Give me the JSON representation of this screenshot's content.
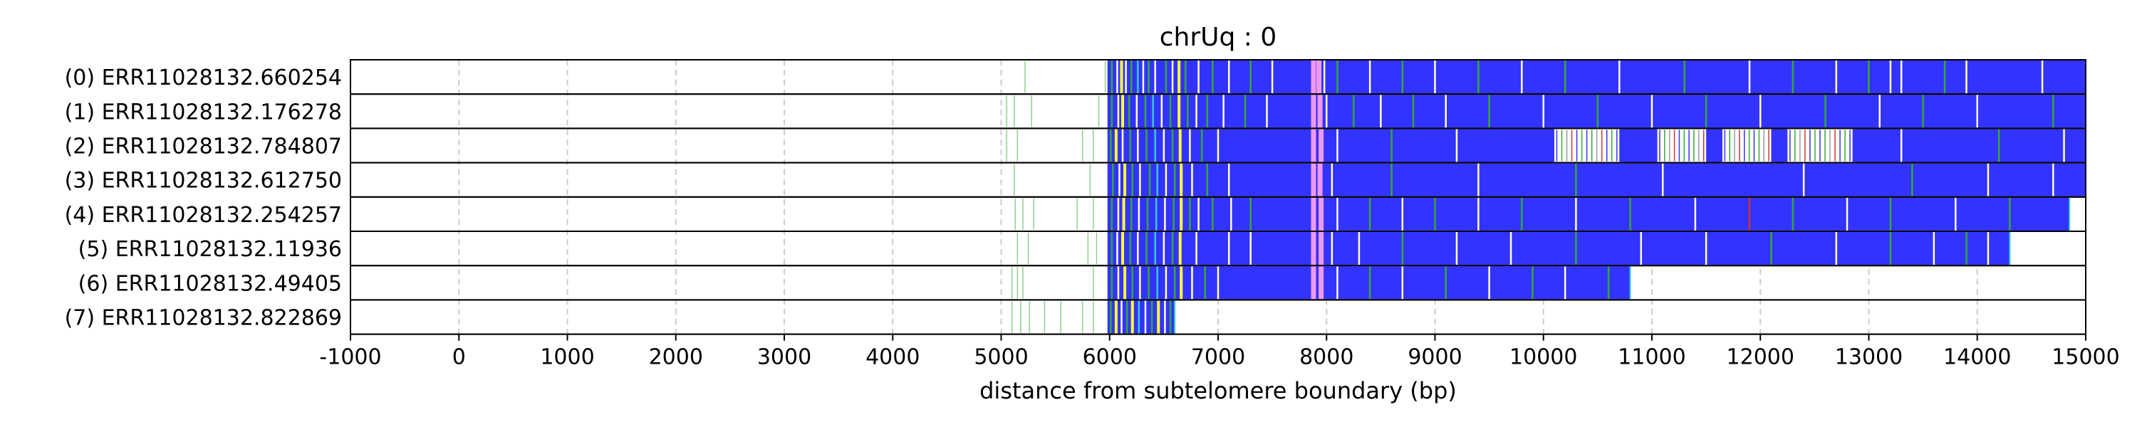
{
  "chart_data": {
    "type": "heatmap",
    "title": "chrUq : 0",
    "xlabel": "distance from subtelomere boundary (bp)",
    "ylabel": "",
    "xlim": [
      -1000,
      15000
    ],
    "xticks": [
      -1000,
      0,
      1000,
      2000,
      3000,
      4000,
      5000,
      6000,
      7000,
      8000,
      9000,
      10000,
      11000,
      12000,
      13000,
      14000,
      15000
    ],
    "xtick_labels": [
      "-1000",
      "0",
      "1000",
      "2000",
      "3000",
      "4000",
      "5000",
      "6000",
      "7000",
      "8000",
      "9000",
      "10000",
      "11000",
      "12000",
      "13000",
      "14000",
      "15000"
    ],
    "grid": "x-dashed",
    "colors": {
      "repeat_fill": "#3333ff",
      "green": "#33aa33",
      "yellow": "#ffff33",
      "pink": "#ee99ee",
      "cyan": "#33cccc",
      "red": "#cc3333",
      "grey": "#999999",
      "white": "#ffffff",
      "frame": "#000000",
      "grid": "#cccccc"
    },
    "reads": [
      {
        "label": "(0) ERR11028132.660254",
        "read_end": 15000,
        "block_start": 5980,
        "block_end": 15000,
        "scattered_marks": [
          5220,
          5960
        ],
        "dense_ticks": [
          [
            6020,
            "green"
          ],
          [
            6070,
            "white"
          ],
          [
            6110,
            "yellow"
          ],
          [
            6150,
            "white"
          ],
          [
            6200,
            "green"
          ],
          [
            6260,
            "cyan"
          ],
          [
            6310,
            "white"
          ],
          [
            6360,
            "green"
          ],
          [
            6420,
            "white"
          ],
          [
            6520,
            "green"
          ],
          [
            6580,
            "white"
          ],
          [
            6640,
            "yellow"
          ],
          [
            6700,
            "green"
          ],
          [
            6820,
            "white"
          ],
          [
            6950,
            "green"
          ],
          [
            7100,
            "white"
          ],
          [
            7300,
            "green"
          ],
          [
            7500,
            "white"
          ],
          [
            7880,
            "pink"
          ],
          [
            7930,
            "pink"
          ],
          [
            7980,
            "white"
          ],
          [
            8100,
            "green"
          ],
          [
            8400,
            "white"
          ],
          [
            8700,
            "green"
          ],
          [
            9000,
            "white"
          ],
          [
            9400,
            "green"
          ],
          [
            9800,
            "white"
          ],
          [
            10200,
            "green"
          ],
          [
            10700,
            "white"
          ],
          [
            11300,
            "green"
          ],
          [
            11900,
            "white"
          ],
          [
            12300,
            "green"
          ],
          [
            12700,
            "white"
          ],
          [
            13000,
            "green"
          ],
          [
            13200,
            "white"
          ],
          [
            13300,
            "white"
          ],
          [
            13700,
            "green"
          ],
          [
            13900,
            "white"
          ],
          [
            14600,
            "white"
          ]
        ]
      },
      {
        "label": "(1) ERR11028132.176278",
        "read_end": 15000,
        "block_start": 5980,
        "block_end": 15000,
        "scattered_marks": [
          5050,
          5120,
          5280,
          5900
        ],
        "dense_ticks": [
          [
            6020,
            "green"
          ],
          [
            6080,
            "white"
          ],
          [
            6120,
            "yellow"
          ],
          [
            6180,
            "green"
          ],
          [
            6250,
            "white"
          ],
          [
            6330,
            "green"
          ],
          [
            6400,
            "cyan"
          ],
          [
            6480,
            "white"
          ],
          [
            6560,
            "green"
          ],
          [
            6640,
            "yellow"
          ],
          [
            6720,
            "green"
          ],
          [
            6800,
            "white"
          ],
          [
            6900,
            "green"
          ],
          [
            7050,
            "white"
          ],
          [
            7250,
            "green"
          ],
          [
            7450,
            "white"
          ],
          [
            7880,
            "pink"
          ],
          [
            7940,
            "pink"
          ],
          [
            8000,
            "white"
          ],
          [
            8250,
            "green"
          ],
          [
            8500,
            "white"
          ],
          [
            8800,
            "green"
          ],
          [
            9100,
            "white"
          ],
          [
            9500,
            "green"
          ],
          [
            10000,
            "white"
          ],
          [
            10500,
            "green"
          ],
          [
            11000,
            "white"
          ],
          [
            11500,
            "green"
          ],
          [
            12000,
            "white"
          ],
          [
            12600,
            "green"
          ],
          [
            13100,
            "white"
          ],
          [
            13500,
            "green"
          ],
          [
            14000,
            "white"
          ],
          [
            14700,
            "green"
          ]
        ]
      },
      {
        "label": "(2) ERR11028132.784807",
        "read_end": 15000,
        "block_start": 5980,
        "block_end": 15000,
        "scattered_marks": [
          5050,
          5150,
          5750,
          5850
        ],
        "dense_ticks": [
          [
            6010,
            "green"
          ],
          [
            6060,
            "yellow"
          ],
          [
            6120,
            "white"
          ],
          [
            6190,
            "green"
          ],
          [
            6260,
            "white"
          ],
          [
            6340,
            "green"
          ],
          [
            6420,
            "cyan"
          ],
          [
            6500,
            "white"
          ],
          [
            6580,
            "green"
          ],
          [
            6650,
            "yellow"
          ],
          [
            6740,
            "white"
          ],
          [
            6850,
            "green"
          ],
          [
            7000,
            "white"
          ],
          [
            7880,
            "pink"
          ],
          [
            7950,
            "pink"
          ],
          [
            8100,
            "white"
          ],
          [
            8600,
            "green"
          ],
          [
            9200,
            "white"
          ],
          [
            13300,
            "white"
          ],
          [
            14200,
            "green"
          ],
          [
            14800,
            "white"
          ]
        ],
        "gap_segments": [
          [
            10100,
            10700
          ],
          [
            11050,
            11500
          ],
          [
            11650,
            12100
          ],
          [
            12250,
            12850
          ]
        ]
      },
      {
        "label": "(3) ERR11028132.612750",
        "read_end": 15000,
        "block_start": 5980,
        "block_end": 15000,
        "scattered_marks": [
          5120,
          5820
        ],
        "dense_ticks": [
          [
            6030,
            "green"
          ],
          [
            6090,
            "white"
          ],
          [
            6140,
            "yellow"
          ],
          [
            6210,
            "green"
          ],
          [
            6280,
            "white"
          ],
          [
            6370,
            "green"
          ],
          [
            6440,
            "cyan"
          ],
          [
            6520,
            "white"
          ],
          [
            6600,
            "green"
          ],
          [
            6660,
            "yellow"
          ],
          [
            6760,
            "white"
          ],
          [
            6900,
            "green"
          ],
          [
            7100,
            "white"
          ],
          [
            7880,
            "pink"
          ],
          [
            7940,
            "pink"
          ],
          [
            8050,
            "white"
          ],
          [
            8600,
            "green"
          ],
          [
            9400,
            "white"
          ],
          [
            10300,
            "green"
          ],
          [
            11100,
            "white"
          ],
          [
            12400,
            "white"
          ],
          [
            13400,
            "green"
          ],
          [
            14100,
            "white"
          ],
          [
            14700,
            "white"
          ]
        ]
      },
      {
        "label": "(4) ERR11028132.254257",
        "read_end": 14850,
        "block_start": 5980,
        "block_end": 14850,
        "scattered_marks": [
          5130,
          5200,
          5300,
          5700,
          5850
        ],
        "dense_ticks": [
          [
            6020,
            "green"
          ],
          [
            6080,
            "white"
          ],
          [
            6130,
            "yellow"
          ],
          [
            6200,
            "green"
          ],
          [
            6270,
            "white"
          ],
          [
            6350,
            "green"
          ],
          [
            6430,
            "cyan"
          ],
          [
            6510,
            "white"
          ],
          [
            6590,
            "green"
          ],
          [
            6660,
            "yellow"
          ],
          [
            6740,
            "green"
          ],
          [
            6820,
            "white"
          ],
          [
            6950,
            "green"
          ],
          [
            7120,
            "white"
          ],
          [
            7300,
            "green"
          ],
          [
            7880,
            "pink"
          ],
          [
            7950,
            "pink"
          ],
          [
            8100,
            "white"
          ],
          [
            8400,
            "green"
          ],
          [
            8700,
            "white"
          ],
          [
            9000,
            "green"
          ],
          [
            9400,
            "white"
          ],
          [
            9800,
            "green"
          ],
          [
            10300,
            "white"
          ],
          [
            10800,
            "green"
          ],
          [
            11400,
            "white"
          ],
          [
            11900,
            "red"
          ],
          [
            12300,
            "green"
          ],
          [
            12800,
            "white"
          ],
          [
            13200,
            "green"
          ],
          [
            13800,
            "white"
          ],
          [
            14300,
            "green"
          ]
        ]
      },
      {
        "label": "(5) ERR11028132.11936",
        "read_end": 14300,
        "block_start": 5980,
        "block_end": 14300,
        "scattered_marks": [
          5150,
          5250,
          5800,
          5880
        ],
        "dense_ticks": [
          [
            6020,
            "green"
          ],
          [
            6070,
            "white"
          ],
          [
            6120,
            "yellow"
          ],
          [
            6190,
            "green"
          ],
          [
            6260,
            "white"
          ],
          [
            6340,
            "green"
          ],
          [
            6420,
            "cyan"
          ],
          [
            6500,
            "white"
          ],
          [
            6580,
            "green"
          ],
          [
            6650,
            "yellow"
          ],
          [
            6800,
            "white"
          ],
          [
            7100,
            "white"
          ],
          [
            7300,
            "white"
          ],
          [
            7880,
            "pink"
          ],
          [
            7950,
            "pink"
          ],
          [
            8050,
            "white"
          ],
          [
            8300,
            "white"
          ],
          [
            8700,
            "green"
          ],
          [
            9200,
            "white"
          ],
          [
            9700,
            "white"
          ],
          [
            10300,
            "green"
          ],
          [
            10900,
            "white"
          ],
          [
            11500,
            "white"
          ],
          [
            12100,
            "green"
          ],
          [
            12700,
            "white"
          ],
          [
            13200,
            "green"
          ],
          [
            13600,
            "white"
          ],
          [
            13900,
            "green"
          ],
          [
            14100,
            "white"
          ]
        ]
      },
      {
        "label": "(6) ERR11028132.49405",
        "read_end": 10800,
        "block_start": 5980,
        "block_end": 10800,
        "scattered_marks": [
          5100,
          5150,
          5200,
          5850
        ],
        "dense_ticks": [
          [
            6020,
            "green"
          ],
          [
            6080,
            "white"
          ],
          [
            6140,
            "yellow"
          ],
          [
            6210,
            "green"
          ],
          [
            6280,
            "white"
          ],
          [
            6360,
            "green"
          ],
          [
            6440,
            "cyan"
          ],
          [
            6520,
            "white"
          ],
          [
            6600,
            "green"
          ],
          [
            6660,
            "yellow"
          ],
          [
            6760,
            "white"
          ],
          [
            6880,
            "green"
          ],
          [
            7000,
            "white"
          ],
          [
            7880,
            "pink"
          ],
          [
            7950,
            "pink"
          ],
          [
            8100,
            "white"
          ],
          [
            8400,
            "green"
          ],
          [
            8700,
            "white"
          ],
          [
            9100,
            "green"
          ],
          [
            9500,
            "white"
          ],
          [
            9900,
            "green"
          ],
          [
            10200,
            "white"
          ],
          [
            10600,
            "green"
          ]
        ]
      },
      {
        "label": "(7) ERR11028132.822869",
        "read_end": 6600,
        "block_start": 5980,
        "block_end": 6600,
        "scattered_marks": [
          5100,
          5180,
          5260,
          5400,
          5550,
          5750,
          5850
        ],
        "dense_ticks": [
          [
            6010,
            "green"
          ],
          [
            6060,
            "yellow"
          ],
          [
            6110,
            "white"
          ],
          [
            6160,
            "green"
          ],
          [
            6210,
            "yellow"
          ],
          [
            6270,
            "cyan"
          ],
          [
            6330,
            "white"
          ],
          [
            6390,
            "green"
          ],
          [
            6450,
            "yellow"
          ],
          [
            6510,
            "white"
          ],
          [
            6560,
            "green"
          ]
        ]
      }
    ]
  }
}
